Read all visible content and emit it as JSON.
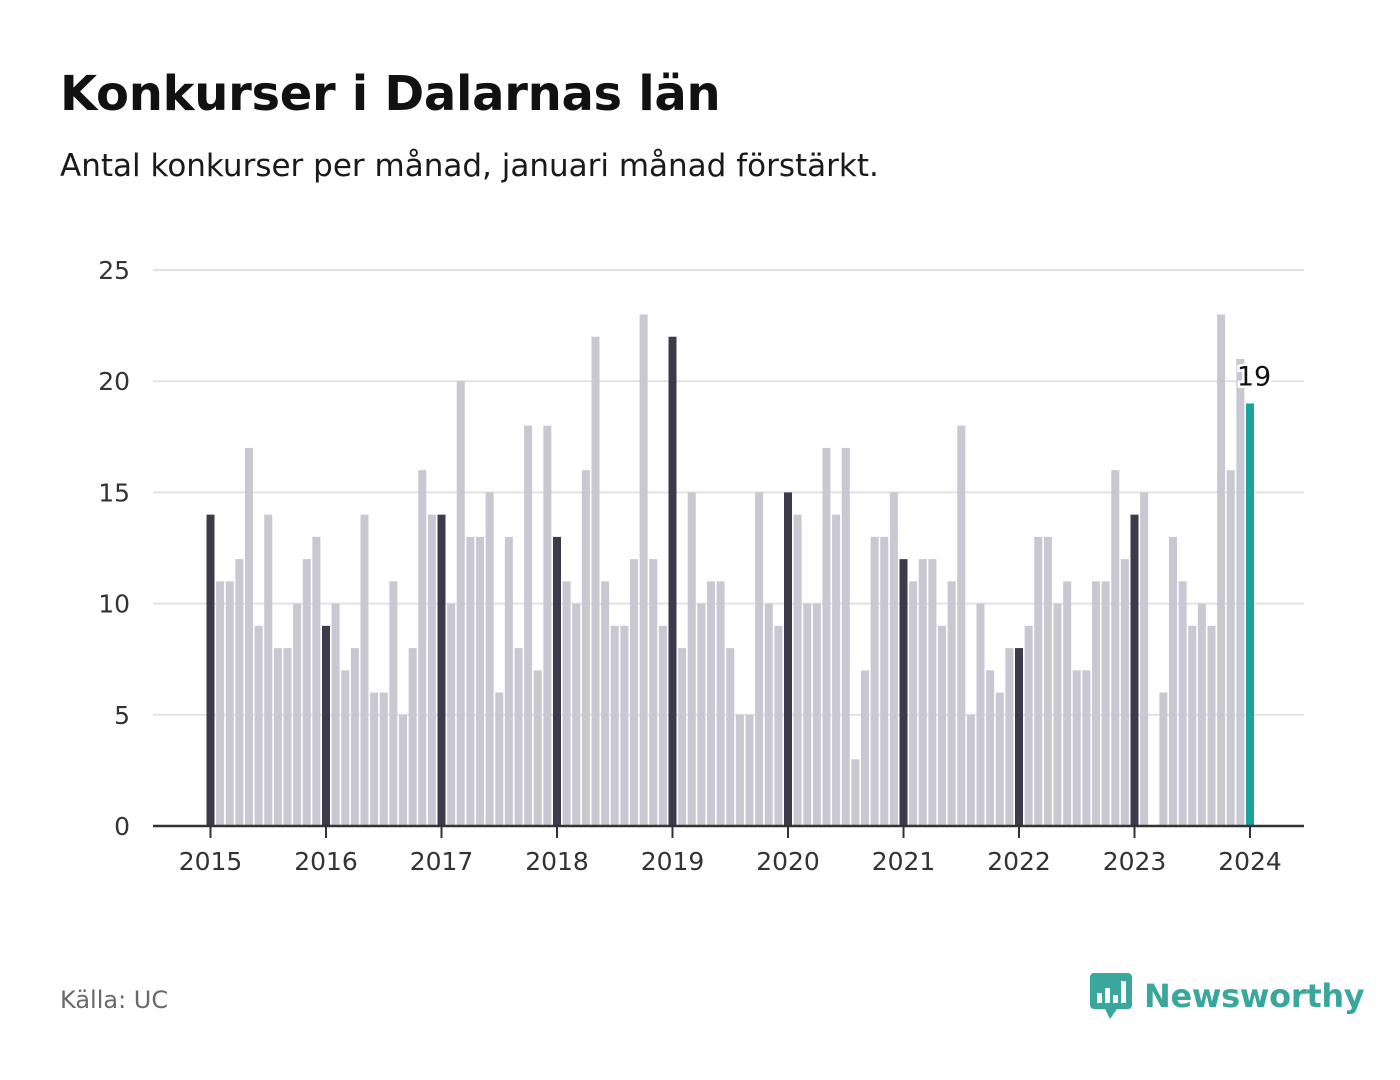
{
  "header": {
    "title": "Konkurser i Dalarnas län",
    "subtitle": "Antal konkurser per månad, januari månad förstärkt."
  },
  "footer": {
    "source": "Källa: UC",
    "brand": "Newsworthy"
  },
  "colors": {
    "bar": "#c8c7d2",
    "january": "#3c3b4b",
    "latest": "#1aa39a",
    "grid": "#e2e2e2",
    "axis": "#333333",
    "brand": "#3aa79c"
  },
  "chart_data": {
    "type": "bar",
    "title": "Konkurser i Dalarnas län",
    "subtitle": "Antal konkurser per månad, januari månad förstärkt.",
    "ylim": [
      0,
      25
    ],
    "yticks": [
      0,
      5,
      10,
      15,
      20,
      25
    ],
    "xticks": [
      "2015",
      "2016",
      "2017",
      "2018",
      "2019",
      "2020",
      "2021",
      "2022",
      "2023",
      "2024"
    ],
    "grid": true,
    "start": "2015-01",
    "highlight": "january",
    "latest_label": "19",
    "values": [
      14,
      11,
      11,
      12,
      17,
      9,
      14,
      8,
      8,
      10,
      12,
      13,
      9,
      10,
      7,
      8,
      14,
      6,
      6,
      11,
      5,
      8,
      16,
      14,
      14,
      10,
      20,
      13,
      13,
      15,
      6,
      13,
      8,
      18,
      7,
      18,
      13,
      11,
      10,
      16,
      22,
      11,
      9,
      9,
      12,
      23,
      12,
      9,
      22,
      8,
      15,
      10,
      11,
      11,
      8,
      5,
      5,
      15,
      10,
      9,
      15,
      14,
      10,
      10,
      17,
      14,
      17,
      3,
      7,
      13,
      13,
      15,
      12,
      11,
      12,
      12,
      9,
      11,
      18,
      5,
      10,
      7,
      6,
      8,
      8,
      9,
      13,
      13,
      10,
      11,
      7,
      7,
      11,
      11,
      16,
      12,
      14,
      15,
      0,
      6,
      13,
      11,
      9,
      10,
      9,
      23,
      16,
      21,
      19
    ]
  }
}
